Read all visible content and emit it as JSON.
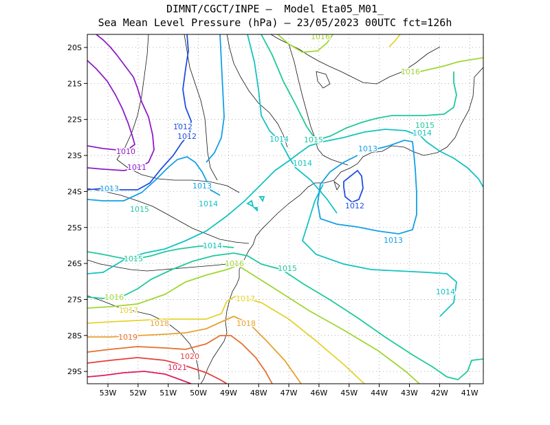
{
  "title": {
    "line1": "DIMNT/CGCT/INPE –  Model Eta05_M01_",
    "line2": "Sea Mean Level Pressure (hPa) – 23/05/2023 00UTC fct=126h"
  },
  "lon_ticks": [
    "53W",
    "52W",
    "51W",
    "50W",
    "49W",
    "48W",
    "47W",
    "46W",
    "45W",
    "44W",
    "43W",
    "42W",
    "41W"
  ],
  "lat_ticks": [
    "20S",
    "21S",
    "22S",
    "23S",
    "24S",
    "25S",
    "26S",
    "27S",
    "28S",
    "29S"
  ],
  "contour_labels": [
    {
      "text": "1016",
      "color": "#a0d631"
    },
    {
      "text": "1016",
      "color": "#a0d631"
    },
    {
      "text": "1015",
      "color": "#1ec99a"
    },
    {
      "text": "1014",
      "color": "#13c2c2"
    },
    {
      "text": "1015",
      "color": "#1ec99a"
    },
    {
      "text": "1014",
      "color": "#13c2c2"
    },
    {
      "text": "1014",
      "color": "#13c2c2"
    },
    {
      "text": "1013",
      "color": "#129fe6"
    },
    {
      "text": "1012",
      "color": "#1f4fe0"
    },
    {
      "text": "1012",
      "color": "#1f4fe0"
    },
    {
      "text": "1012",
      "color": "#1f4fe0"
    },
    {
      "text": "1010",
      "color": "#8e1bc9"
    },
    {
      "text": "1011",
      "color": "#8e1bc9"
    },
    {
      "text": "1013",
      "color": "#129fe6"
    },
    {
      "text": "1013",
      "color": "#129fe6"
    },
    {
      "text": "1014",
      "color": "#13c2c2"
    },
    {
      "text": "1013",
      "color": "#129fe6"
    },
    {
      "text": "1015",
      "color": "#1ec99a"
    },
    {
      "text": "1014",
      "color": "#13c2c2"
    },
    {
      "text": "1015",
      "color": "#1ec99a"
    },
    {
      "text": "1016",
      "color": "#a0d631"
    },
    {
      "text": "1015",
      "color": "#1ec99a"
    },
    {
      "text": "1014",
      "color": "#13c2c2"
    },
    {
      "text": "1017",
      "color": "#e6d22d"
    },
    {
      "text": "1016",
      "color": "#a0d631"
    },
    {
      "text": "1017",
      "color": "#e6d22d"
    },
    {
      "text": "1018",
      "color": "#e6a22d"
    },
    {
      "text": "1018",
      "color": "#e6a22d"
    },
    {
      "text": "1019",
      "color": "#e66e2d"
    },
    {
      "text": "1020",
      "color": "#e63c3c"
    },
    {
      "text": "1021",
      "color": "#e0195a"
    }
  ]
}
